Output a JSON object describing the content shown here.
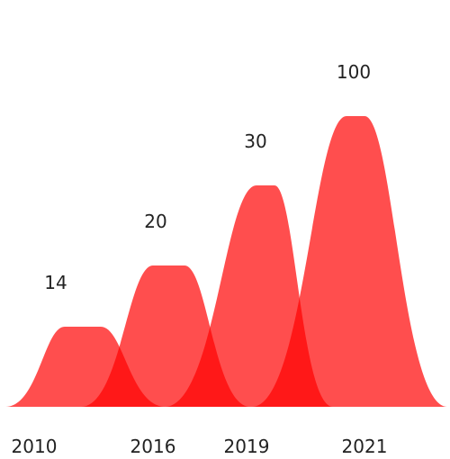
{
  "chart_data": {
    "type": "area",
    "categories": [
      "2010",
      "2016",
      "2019",
      "2021"
    ],
    "values": [
      14,
      20,
      30,
      100
    ],
    "title": "",
    "xlabel": "",
    "ylabel": "",
    "grid": false,
    "legend": "none",
    "colors": {
      "fill": "#ff3b3b",
      "label": "#222222"
    }
  }
}
